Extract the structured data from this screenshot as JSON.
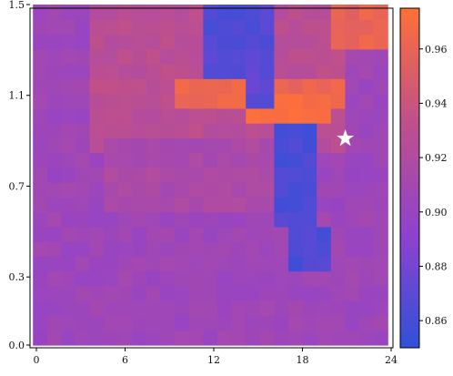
{
  "chart_data": {
    "type": "heatmap",
    "title": "",
    "xlabel": "",
    "ylabel": "",
    "x_tick_labels": [
      "0",
      "6",
      "12",
      "18",
      "24"
    ],
    "x_ticks": [
      0,
      6,
      12,
      18,
      24
    ],
    "y_tick_labels": [
      "0.0",
      "0.3",
      "0.7",
      "1.1",
      "1.5"
    ],
    "y_ticks": [
      0.0,
      0.3,
      0.7,
      1.1,
      1.5
    ],
    "xlim": [
      0,
      24
    ],
    "ylim": [
      0.0,
      1.5
    ],
    "colorbar": {
      "range": [
        0.85,
        0.975
      ],
      "tick_labels": [
        "0.86",
        "0.88",
        "0.90",
        "0.92",
        "0.94",
        "0.96"
      ],
      "ticks": [
        0.86,
        0.88,
        0.9,
        0.92,
        0.94,
        0.96
      ],
      "colors": [
        "#3050d8",
        "#8e42cf",
        "#c0508a",
        "#ff7038"
      ]
    },
    "baseline_value": 0.905,
    "regions": [
      {
        "x": [
          4,
          21
        ],
        "y": [
          0.85,
          1.5
        ],
        "value": 0.928
      },
      {
        "x": [
          5,
          19
        ],
        "y": [
          0.6,
          0.9
        ],
        "value": 0.915
      },
      {
        "x": [
          10,
          21
        ],
        "y": [
          1.02,
          1.18
        ],
        "value": 0.962
      },
      {
        "x": [
          14,
          20
        ],
        "y": [
          0.95,
          1.08
        ],
        "value": 0.968
      },
      {
        "x": [
          20,
          24
        ],
        "y": [
          1.3,
          1.5
        ],
        "value": 0.96
      },
      {
        "x": [
          12,
          16
        ],
        "y": [
          1.18,
          1.5
        ],
        "value": 0.865
      },
      {
        "x": [
          14,
          16
        ],
        "y": [
          1.05,
          1.25
        ],
        "value": 0.87
      },
      {
        "x": [
          16,
          19
        ],
        "y": [
          0.55,
          0.95
        ],
        "value": 0.862
      },
      {
        "x": [
          17,
          20
        ],
        "y": [
          0.35,
          0.55
        ],
        "value": 0.862
      },
      {
        "x": [
          17,
          18
        ],
        "y": [
          0.3,
          0.35
        ],
        "value": 0.862
      }
    ],
    "marker": {
      "symbol": "star",
      "x": 20.9,
      "y": 0.91
    }
  }
}
